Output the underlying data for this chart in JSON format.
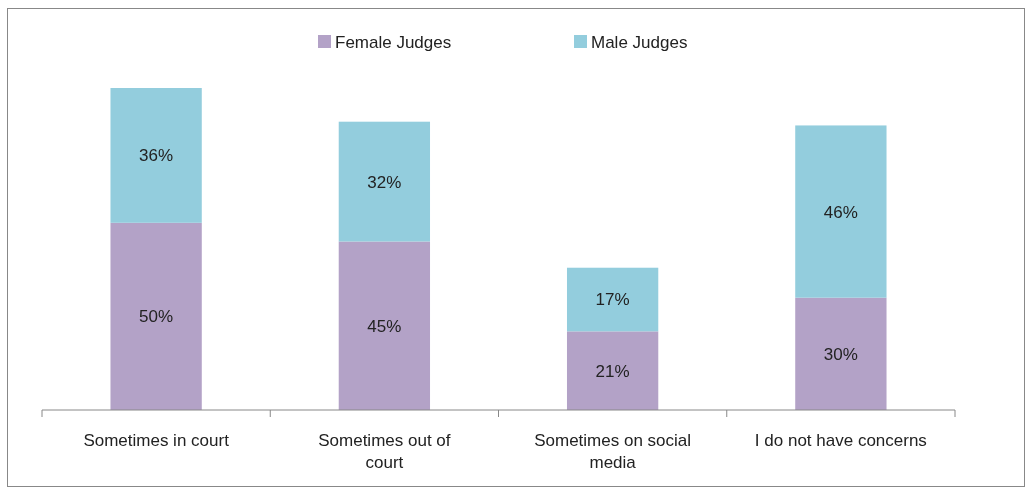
{
  "chart_data": {
    "type": "bar",
    "stacked": true,
    "legend": "top",
    "categories": [
      "Sometimes in court",
      "Sometimes out of court",
      "Sometimes on social media",
      "I do not have concerns"
    ],
    "series": [
      {
        "name": "Female Judges",
        "color": "#b3a2c7",
        "values": [
          50,
          45,
          21,
          30
        ],
        "value_labels": [
          "50%",
          "45%",
          "21%",
          "30%"
        ]
      },
      {
        "name": "Male Judges",
        "color": "#93cddd",
        "values": [
          36,
          32,
          17,
          46
        ],
        "value_labels": [
          "36%",
          "32%",
          "17%",
          "46%"
        ]
      }
    ]
  }
}
